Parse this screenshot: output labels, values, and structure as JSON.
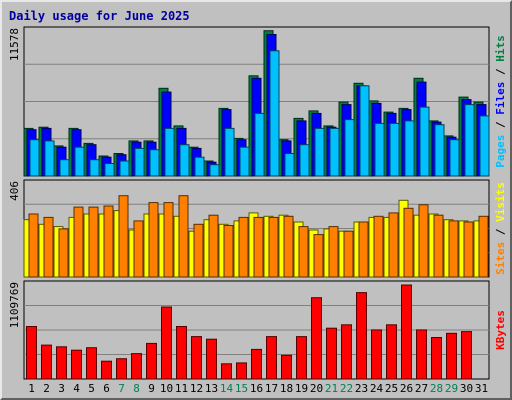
{
  "chart_data": {
    "type": "bar",
    "title": "Daily usage for June 2025",
    "categories": [
      "1",
      "2",
      "3",
      "4",
      "5",
      "6",
      "7",
      "8",
      "9",
      "10",
      "11",
      "12",
      "13",
      "14",
      "15",
      "16",
      "17",
      "18",
      "19",
      "20",
      "21",
      "22",
      "23",
      "24",
      "25",
      "26",
      "27",
      "28",
      "29",
      "30",
      "31"
    ],
    "weekend_days": [
      "7",
      "8",
      "14",
      "15",
      "21",
      "22",
      "28",
      "29"
    ],
    "panels": [
      {
        "name": "hits-files-pages",
        "max_label": "11578",
        "ylim": [
          0,
          11578
        ],
        "series": [
          {
            "name": "Hits",
            "color": "#008040",
            "values": [
              3800,
              3900,
              2400,
              3800,
              2600,
              1600,
              1800,
              2800,
              2800,
              7000,
              4000,
              2300,
              1200,
              5400,
              3000,
              8000,
              11600,
              2900,
              4600,
              5200,
              4000,
              5900,
              7400,
              6000,
              5100,
              5400,
              7800,
              4400,
              3200,
              6300,
              5900
            ]
          },
          {
            "name": "Files",
            "color": "#0000ff",
            "values": [
              3700,
              3800,
              2300,
              3700,
              2500,
              1500,
              1700,
              2700,
              2700,
              6700,
              3800,
              2200,
              1100,
              5300,
              2900,
              7800,
              11300,
              2800,
              4400,
              5000,
              3900,
              5700,
              7200,
              5800,
              5000,
              5300,
              7500,
              4300,
              3100,
              6100,
              5700
            ]
          },
          {
            "name": "Pages",
            "color": "#00c0ff",
            "values": [
              2900,
              2800,
              1300,
              2300,
              1300,
              1000,
              1200,
              2200,
              2100,
              3800,
              2500,
              1500,
              900,
              3800,
              2300,
              5000,
              10000,
              1800,
              2500,
              3800,
              3800,
              4500,
              7200,
              4200,
              4200,
              4400,
              5500,
              4100,
              2900,
              5700,
              4800
            ]
          }
        ]
      },
      {
        "name": "visits-sites",
        "max_label": "406",
        "ylim": [
          0,
          406
        ],
        "series": [
          {
            "name": "Visits",
            "color": "#ffff00",
            "values": [
              250,
              230,
              220,
              260,
              275,
              275,
              290,
              205,
              275,
              275,
              265,
              200,
              250,
              230,
              245,
              280,
              265,
              270,
              240,
              205,
              210,
              200,
              240,
              260,
              260,
              335,
              270,
              275,
              250,
              245,
              245
            ]
          },
          {
            "name": "Sites",
            "color": "#ff8000",
            "values": [
              275,
              260,
              210,
              305,
              305,
              310,
              355,
              245,
              325,
              325,
              355,
              230,
              270,
              225,
              260,
              260,
              260,
              265,
              220,
              185,
              220,
              200,
              240,
              265,
              280,
              300,
              315,
              270,
              245,
              240,
              265
            ]
          }
        ]
      },
      {
        "name": "kbytes",
        "max_label": "1109769",
        "ylim": [
          0,
          1109769
        ],
        "series": [
          {
            "name": "KBytes",
            "color": "#ff0000",
            "values": [
              620000,
              400000,
              380000,
              340000,
              370000,
              210000,
              240000,
              300000,
              420000,
              850000,
              620000,
              500000,
              470000,
              180000,
              190000,
              350000,
              500000,
              280000,
              500000,
              960000,
              600000,
              640000,
              1020000,
              580000,
              640000,
              1109769,
              580000,
              490000,
              540000,
              560000,
              0
            ]
          }
        ]
      }
    ]
  }
}
